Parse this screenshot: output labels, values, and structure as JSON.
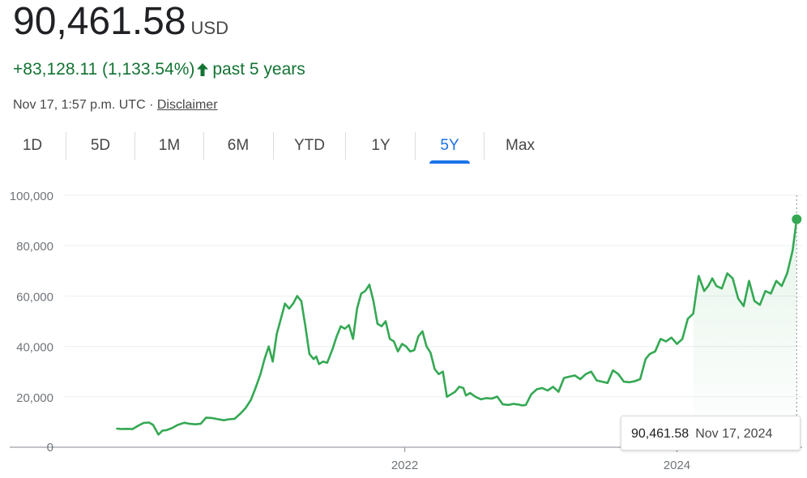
{
  "header": {
    "price": "90,461.58",
    "currency": "USD",
    "change": "+83,128.11 (1,133.54%)",
    "period": "past 5 years",
    "timestamp": "Nov 17, 1:57 p.m. UTC ·",
    "disclaimer": "Disclaimer"
  },
  "tabs": [
    {
      "label": "1D"
    },
    {
      "label": "5D"
    },
    {
      "label": "1M"
    },
    {
      "label": "6M"
    },
    {
      "label": "YTD"
    },
    {
      "label": "1Y"
    },
    {
      "label": "5Y",
      "active": true
    },
    {
      "label": "Max"
    }
  ],
  "tooltip": {
    "value": "90,461.58",
    "date": "Nov 17, 2024"
  },
  "colors": {
    "line": "#34a853",
    "positive": "#137333",
    "accent": "#1a73e8",
    "grid": "#e8eaed"
  },
  "chart_data": {
    "type": "area",
    "y_ticks": [
      "100,000",
      "80,000",
      "60,000",
      "40,000",
      "20,000",
      "0"
    ],
    "y_tick_values": [
      100000,
      80000,
      60000,
      40000,
      20000,
      0
    ],
    "x_ticks": [
      {
        "label": "2022",
        "year": 2022.0
      },
      {
        "label": "2024",
        "year": 2024.0
      }
    ],
    "ylim": [
      0,
      100000
    ],
    "xlim": [
      2019.55,
      2024.92
    ],
    "grid": true,
    "legend": "none",
    "x": [
      2019.88,
      2019.92,
      2019.96,
      2020.0,
      2020.04,
      2020.08,
      2020.12,
      2020.15,
      2020.19,
      2020.22,
      2020.25,
      2020.29,
      2020.33,
      2020.38,
      2020.42,
      2020.46,
      2020.5,
      2020.54,
      2020.58,
      2020.63,
      2020.67,
      2020.71,
      2020.75,
      2020.79,
      2020.83,
      2020.87,
      2020.9,
      2020.94,
      2020.97,
      2021.0,
      2021.03,
      2021.06,
      2021.09,
      2021.12,
      2021.15,
      2021.18,
      2021.21,
      2021.24,
      2021.27,
      2021.3,
      2021.33,
      2021.35,
      2021.37,
      2021.4,
      2021.43,
      2021.47,
      2021.5,
      2021.53,
      2021.56,
      2021.59,
      2021.62,
      2021.65,
      2021.68,
      2021.71,
      2021.74,
      2021.77,
      2021.8,
      2021.83,
      2021.86,
      2021.89,
      2021.92,
      2021.95,
      2021.98,
      2022.01,
      2022.04,
      2022.07,
      2022.1,
      2022.13,
      2022.16,
      2022.19,
      2022.22,
      2022.25,
      2022.28,
      2022.31,
      2022.34,
      2022.37,
      2022.4,
      2022.43,
      2022.45,
      2022.48,
      2022.52,
      2022.56,
      2022.6,
      2022.64,
      2022.68,
      2022.72,
      2022.76,
      2022.8,
      2022.84,
      2022.86,
      2022.89,
      2022.93,
      2022.97,
      2023.01,
      2023.05,
      2023.09,
      2023.13,
      2023.17,
      2023.21,
      2023.25,
      2023.29,
      2023.33,
      2023.37,
      2023.41,
      2023.45,
      2023.49,
      2023.53,
      2023.57,
      2023.61,
      2023.65,
      2023.69,
      2023.73,
      2023.77,
      2023.8,
      2023.84,
      2023.88,
      2023.92,
      2023.96,
      2024.0,
      2024.04,
      2024.08,
      2024.12,
      2024.16,
      2024.2,
      2024.23,
      2024.26,
      2024.29,
      2024.33,
      2024.37,
      2024.41,
      2024.45,
      2024.49,
      2024.53,
      2024.57,
      2024.61,
      2024.65,
      2024.69,
      2024.73,
      2024.77,
      2024.81,
      2024.85,
      2024.88
    ],
    "y": [
      7400,
      7200,
      7300,
      7200,
      8500,
      9600,
      9800,
      8900,
      5000,
      6600,
      6800,
      7600,
      8800,
      9700,
      9300,
      9100,
      9300,
      11700,
      11600,
      11100,
      10700,
      11100,
      11300,
      13200,
      15500,
      18800,
      23000,
      29000,
      35000,
      40000,
      34000,
      45000,
      51000,
      57000,
      55000,
      57000,
      60000,
      58000,
      48000,
      37000,
      35000,
      36000,
      33000,
      34000,
      33500,
      39000,
      44000,
      48000,
      47000,
      48500,
      43000,
      55000,
      61000,
      62000,
      64500,
      58000,
      49000,
      48000,
      50000,
      43000,
      42000,
      38000,
      41000,
      40000,
      38000,
      38500,
      44000,
      46000,
      40000,
      37500,
      31000,
      29000,
      30000,
      20000,
      21000,
      22000,
      24000,
      23500,
      20500,
      21500,
      20000,
      19000,
      19500,
      19300,
      20100,
      17000,
      16800,
      17200,
      16900,
      16600,
      16800,
      21000,
      23000,
      23500,
      22500,
      24000,
      22000,
      27500,
      28000,
      28500,
      27000,
      29000,
      30000,
      26500,
      26000,
      25500,
      30500,
      29000,
      26000,
      25800,
      26200,
      27000,
      35000,
      37000,
      38000,
      43000,
      42000,
      43500,
      41000,
      43000,
      51000,
      53000,
      68000,
      62000,
      64000,
      67000,
      64000,
      63000,
      69000,
      67000,
      59000,
      56000,
      66000,
      58000,
      56500,
      62000,
      61000,
      66000,
      64000,
      69000,
      78000,
      90461.58
    ]
  }
}
